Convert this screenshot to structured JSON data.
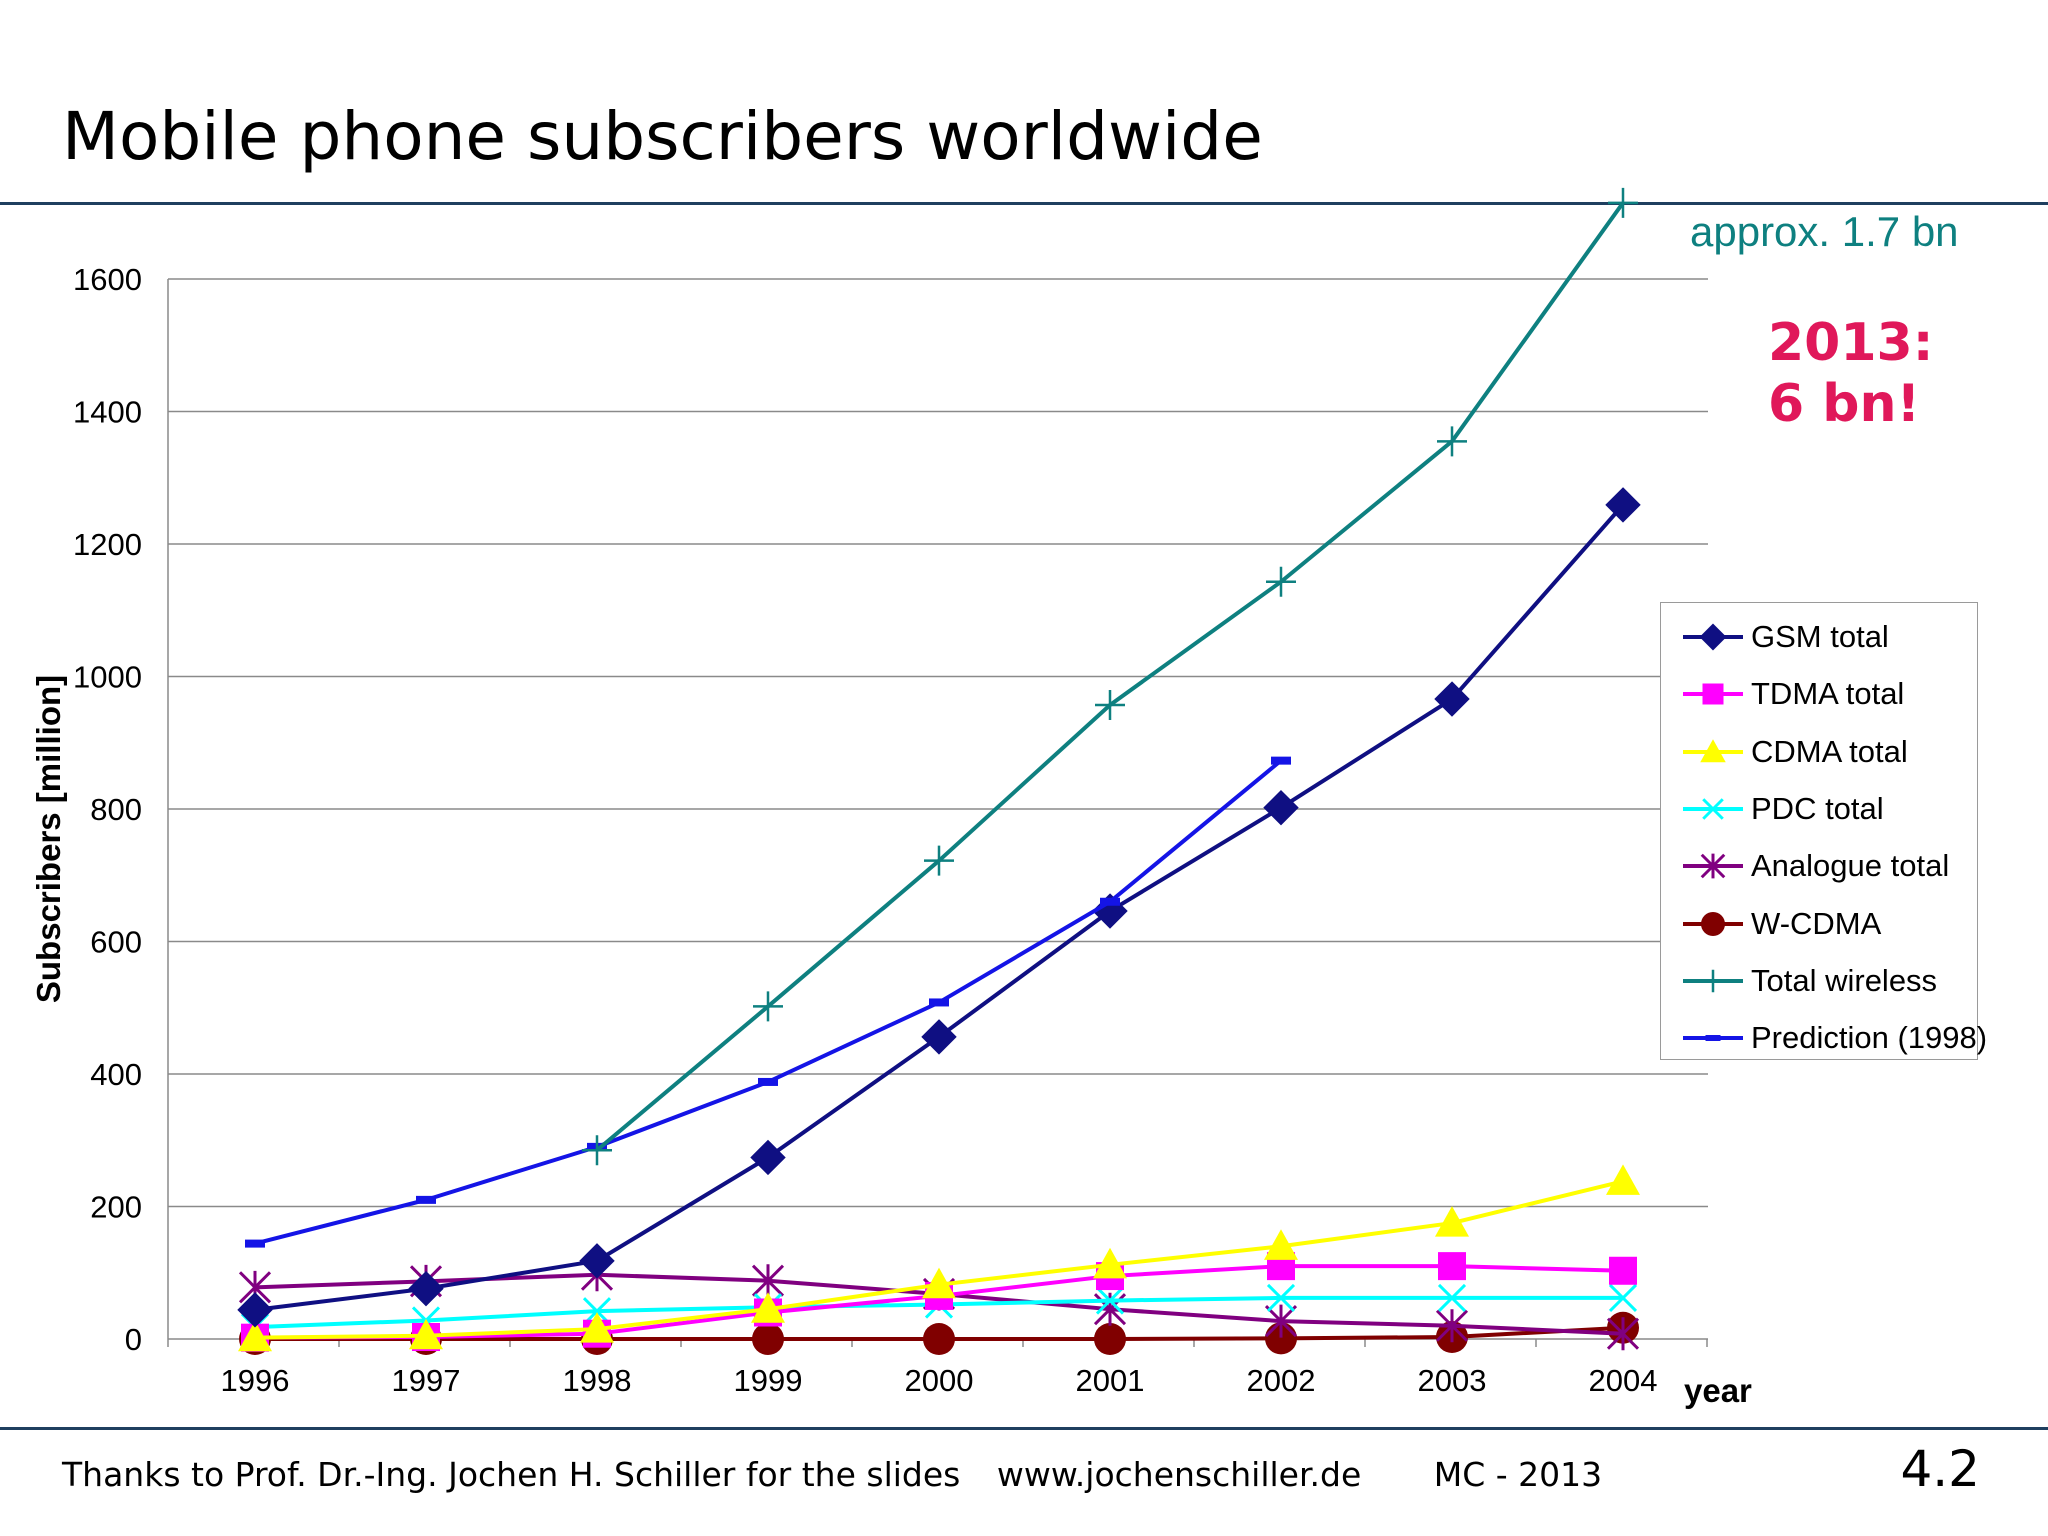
{
  "slide": {
    "title": "Mobile phone subscribers worldwide",
    "footer_credit": "Thanks to Prof. Dr.-Ing. Jochen H. Schiller for the slides",
    "footer_site": "www.jochenschiller.de",
    "footer_course": "MC - 2013",
    "page_number": "4.2"
  },
  "annotations": {
    "approx": "approx. 1.7 bn",
    "highlight_line1": "2013:",
    "highlight_line2": "6 bn!"
  },
  "chart_data": {
    "type": "line",
    "title": "Mobile phone subscribers worldwide",
    "xlabel": "year",
    "ylabel": "Subscribers [million]",
    "categories": [
      "1996",
      "1997",
      "1998",
      "1999",
      "2000",
      "2001",
      "2002",
      "2003",
      "2004"
    ],
    "ylim": [
      0,
      1600
    ],
    "yticks": [
      0,
      200,
      400,
      600,
      800,
      1000,
      1200,
      1400,
      1600
    ],
    "grid": true,
    "legend_position": "right",
    "series": [
      {
        "name": "GSM total",
        "color": "#0f0f82",
        "marker": "diamond",
        "values": [
          44,
          76,
          118,
          274,
          456,
          646,
          802,
          966,
          1259
        ]
      },
      {
        "name": "TDMA total",
        "color": "#ff00ff",
        "marker": "square",
        "values": [
          2,
          3,
          8,
          40,
          65,
          95,
          110,
          110,
          103
        ]
      },
      {
        "name": "CDMA total",
        "color": "#ffff00",
        "marker": "triangle",
        "values": [
          2,
          5,
          15,
          45,
          82,
          112,
          140,
          175,
          238
        ]
      },
      {
        "name": "PDC total",
        "color": "#00ffff",
        "marker": "x",
        "values": [
          18,
          28,
          42,
          48,
          52,
          58,
          62,
          62,
          62
        ]
      },
      {
        "name": "Analogue total",
        "color": "#800080",
        "marker": "star",
        "values": [
          78,
          87,
          97,
          88,
          68,
          45,
          27,
          20,
          8
        ]
      },
      {
        "name": "W-CDMA",
        "color": "#800000",
        "marker": "circle",
        "values": [
          0,
          0,
          0,
          0,
          0,
          0,
          1,
          3,
          17
        ]
      },
      {
        "name": "Total wireless",
        "color": "#0e8080",
        "marker": "plus",
        "values": [
          null,
          null,
          285,
          502,
          722,
          957,
          1143,
          1355,
          1715
        ]
      },
      {
        "name": "Prediction (1998)",
        "color": "#1414e6",
        "marker": "dash",
        "values": [
          144,
          210,
          290,
          388,
          508,
          660,
          873,
          null,
          null
        ]
      }
    ]
  }
}
